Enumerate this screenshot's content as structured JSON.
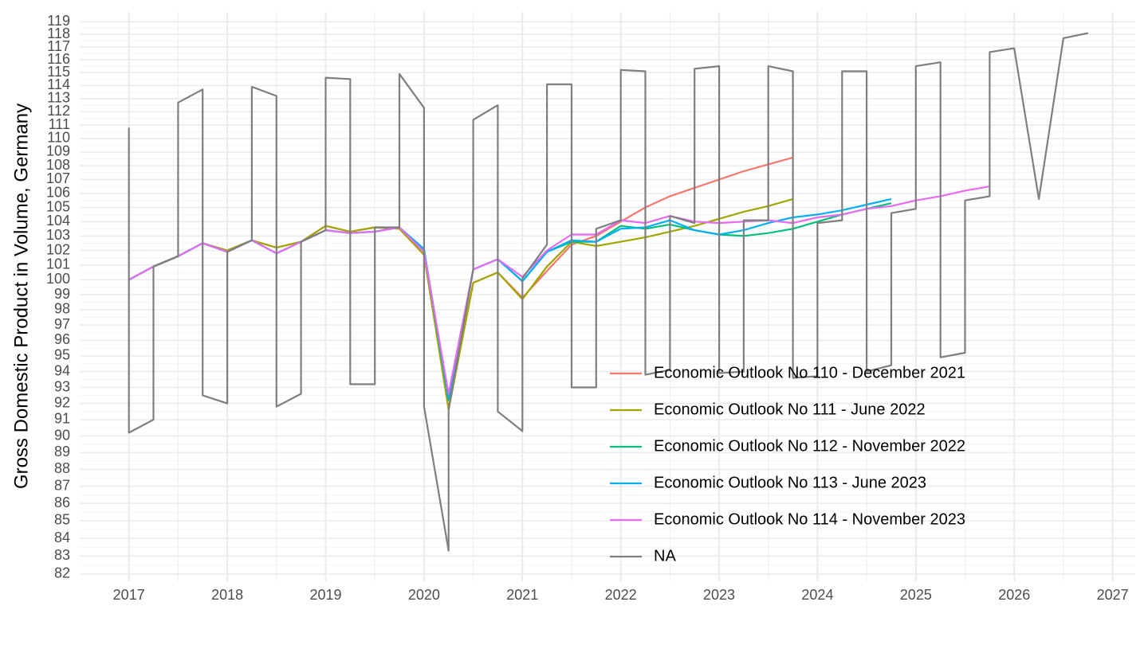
{
  "chart_data": {
    "type": "line",
    "y_label": "Gross Domestic Product in Volume, Germany",
    "yscale": "log",
    "xlim": [
      2016.5,
      2027.23
    ],
    "xticks": [
      2017,
      2018,
      2019,
      2020,
      2021,
      2022,
      2023,
      2024,
      2025,
      2026,
      2027
    ],
    "ylim": [
      81.6,
      119.8
    ],
    "yticks": [
      82,
      83,
      84,
      85,
      86,
      87,
      88,
      89,
      90,
      91,
      92,
      93,
      94,
      95,
      96,
      97,
      98,
      99,
      100,
      101,
      102,
      103,
      104,
      105,
      106,
      107,
      108,
      109,
      110,
      111,
      112,
      113,
      114,
      115,
      116,
      117,
      118,
      119
    ],
    "grid": true,
    "legend_position": "bottom-right",
    "series": [
      {
        "name": "Economic Outlook No 110 - December 2021",
        "color": "#F8766D",
        "x": [
          2017,
          2017.25,
          2017.5,
          2017.75,
          2018,
          2018.25,
          2018.5,
          2018.75,
          2019,
          2019.25,
          2019.5,
          2019.75,
          2020,
          2020.25,
          2020.5,
          2020.75,
          2021,
          2021.25,
          2021.5,
          2021.75,
          2022,
          2022.25,
          2022.5,
          2022.75,
          2023,
          2023.25,
          2023.5,
          2023.75
        ],
        "values": [
          100.0,
          100.9,
          101.6,
          102.5,
          102.0,
          102.7,
          102.2,
          102.6,
          103.7,
          103.3,
          103.6,
          103.5,
          101.7,
          91.7,
          99.8,
          100.5,
          98.8,
          100.6,
          102.4,
          103.0,
          104.0,
          105.0,
          105.8,
          106.4,
          107.0,
          107.6,
          108.1,
          108.6
        ]
      },
      {
        "name": "Economic Outlook No 111 - June 2022",
        "color": "#A3A500",
        "x": [
          2017,
          2017.25,
          2017.5,
          2017.75,
          2018,
          2018.25,
          2018.5,
          2018.75,
          2019,
          2019.25,
          2019.5,
          2019.75,
          2020,
          2020.25,
          2020.5,
          2020.75,
          2021,
          2021.25,
          2021.5,
          2021.75,
          2022,
          2022.25,
          2022.5,
          2022.75,
          2023,
          2023.25,
          2023.5,
          2023.75
        ],
        "values": [
          100.0,
          100.9,
          101.6,
          102.5,
          102.0,
          102.7,
          102.2,
          102.6,
          103.7,
          103.3,
          103.6,
          103.5,
          101.7,
          91.6,
          99.8,
          100.5,
          98.7,
          100.9,
          102.6,
          102.3,
          102.6,
          102.9,
          103.3,
          103.7,
          104.2,
          104.7,
          105.1,
          105.6
        ]
      },
      {
        "name": "Economic Outlook No 112 - November 2022",
        "color": "#00BF7D",
        "x": [
          2017,
          2017.25,
          2017.5,
          2017.75,
          2018,
          2018.25,
          2018.5,
          2018.75,
          2019,
          2019.25,
          2019.5,
          2019.75,
          2020,
          2020.25,
          2020.5,
          2020.75,
          2021,
          2021.25,
          2021.5,
          2021.75,
          2022,
          2022.25,
          2022.5,
          2022.75,
          2023,
          2023.25,
          2023.5,
          2023.75,
          2024,
          2024.25,
          2024.5,
          2024.75
        ],
        "values": [
          100.0,
          100.9,
          101.6,
          102.5,
          101.9,
          102.7,
          101.8,
          102.6,
          103.4,
          103.2,
          103.3,
          103.6,
          102.0,
          92.2,
          100.7,
          101.4,
          99.9,
          101.9,
          102.6,
          102.6,
          103.7,
          103.5,
          103.8,
          103.4,
          103.1,
          103.0,
          103.2,
          103.5,
          104.0,
          104.5,
          104.9,
          105.3
        ]
      },
      {
        "name": "Economic Outlook No 113 - June 2023",
        "color": "#00B0F6",
        "x": [
          2017,
          2017.25,
          2017.5,
          2017.75,
          2018,
          2018.25,
          2018.5,
          2018.75,
          2019,
          2019.25,
          2019.5,
          2019.75,
          2020,
          2020.25,
          2020.5,
          2020.75,
          2021,
          2021.25,
          2021.5,
          2021.75,
          2022,
          2022.25,
          2022.5,
          2022.75,
          2023,
          2023.25,
          2023.5,
          2023.75,
          2024,
          2024.25,
          2024.5,
          2024.75
        ],
        "values": [
          100.0,
          100.9,
          101.6,
          102.5,
          101.9,
          102.7,
          101.8,
          102.6,
          103.4,
          103.2,
          103.3,
          103.6,
          102.1,
          92.3,
          100.7,
          101.4,
          99.9,
          101.9,
          102.7,
          102.6,
          103.5,
          103.6,
          104.1,
          103.4,
          103.1,
          103.4,
          103.9,
          104.3,
          104.5,
          104.8,
          105.2,
          105.6
        ]
      },
      {
        "name": "Economic Outlook No 114 - November 2023",
        "color": "#E76BF3",
        "x": [
          2017,
          2017.25,
          2017.5,
          2017.75,
          2018,
          2018.25,
          2018.5,
          2018.75,
          2019,
          2019.25,
          2019.5,
          2019.75,
          2020,
          2020.25,
          2020.5,
          2020.75,
          2021,
          2021.25,
          2021.5,
          2021.75,
          2022,
          2022.25,
          2022.5,
          2022.75,
          2023,
          2023.25,
          2023.5,
          2023.75,
          2024,
          2024.25,
          2024.5,
          2024.75,
          2025,
          2025.25,
          2025.5,
          2025.75
        ],
        "values": [
          100.0,
          100.9,
          101.6,
          102.5,
          101.9,
          102.7,
          101.8,
          102.6,
          103.4,
          103.2,
          103.3,
          103.6,
          101.9,
          92.6,
          100.7,
          101.4,
          100.2,
          102.0,
          103.1,
          103.1,
          104.1,
          103.9,
          104.4,
          104.0,
          103.9,
          104.0,
          104.1,
          103.9,
          104.3,
          104.5,
          104.9,
          105.1,
          105.5,
          105.8,
          106.2,
          106.5
        ]
      },
      {
        "name": "NA",
        "color": "#7F7F7F",
        "x": [
          2017,
          2017,
          2017.25,
          2017.25,
          2017.5,
          2017.5,
          2017.75,
          2017.75,
          2018,
          2018,
          2018.25,
          2018.25,
          2018.5,
          2018.5,
          2018.75,
          2018.75,
          2019,
          2019,
          2019.25,
          2019.25,
          2019.5,
          2019.5,
          2019.75,
          2019.75,
          2020,
          2020,
          2020.25,
          2020.25,
          2020.5,
          2020.5,
          2020.75,
          2020.75,
          2021,
          2021,
          2021.25,
          2021.25,
          2021.5,
          2021.5,
          2021.75,
          2021.75,
          2022,
          2022,
          2022.25,
          2022.25,
          2022.5,
          2022.5,
          2022.75,
          2022.75,
          2023,
          2023,
          2023.25,
          2023.25,
          2023.5,
          2023.5,
          2023.75,
          2023.75,
          2024,
          2024,
          2024.25,
          2024.25,
          2024.5,
          2024.5,
          2024.75,
          2024.75,
          2025,
          2025,
          2025.25,
          2025.25,
          2025.5,
          2025.5,
          2025.75,
          2025.75,
          2026,
          2026.25,
          2026.5,
          2026.75
        ],
        "values": [
          110.8,
          90.2,
          91.0,
          100.9,
          101.6,
          112.7,
          113.7,
          92.5,
          92.0,
          101.9,
          102.7,
          113.9,
          113.2,
          91.8,
          92.6,
          102.6,
          103.4,
          114.6,
          114.5,
          93.2,
          93.2,
          103.6,
          103.6,
          114.9,
          112.3,
          91.8,
          83.3,
          91.6,
          100.7,
          111.4,
          112.5,
          91.5,
          90.3,
          100.1,
          102.4,
          114.1,
          114.1,
          93.0,
          93.0,
          103.5,
          104.1,
          115.2,
          115.1,
          93.8,
          94.1,
          104.4,
          103.9,
          115.3,
          115.5,
          93.9,
          94.0,
          104.1,
          104.1,
          115.5,
          115.1,
          93.6,
          93.7,
          103.9,
          104.1,
          115.1,
          115.1,
          94.0,
          94.4,
          104.6,
          104.9,
          115.5,
          115.8,
          94.9,
          95.2,
          105.5,
          105.8,
          116.6,
          116.9,
          105.6,
          117.7,
          118.1
        ]
      }
    ]
  }
}
